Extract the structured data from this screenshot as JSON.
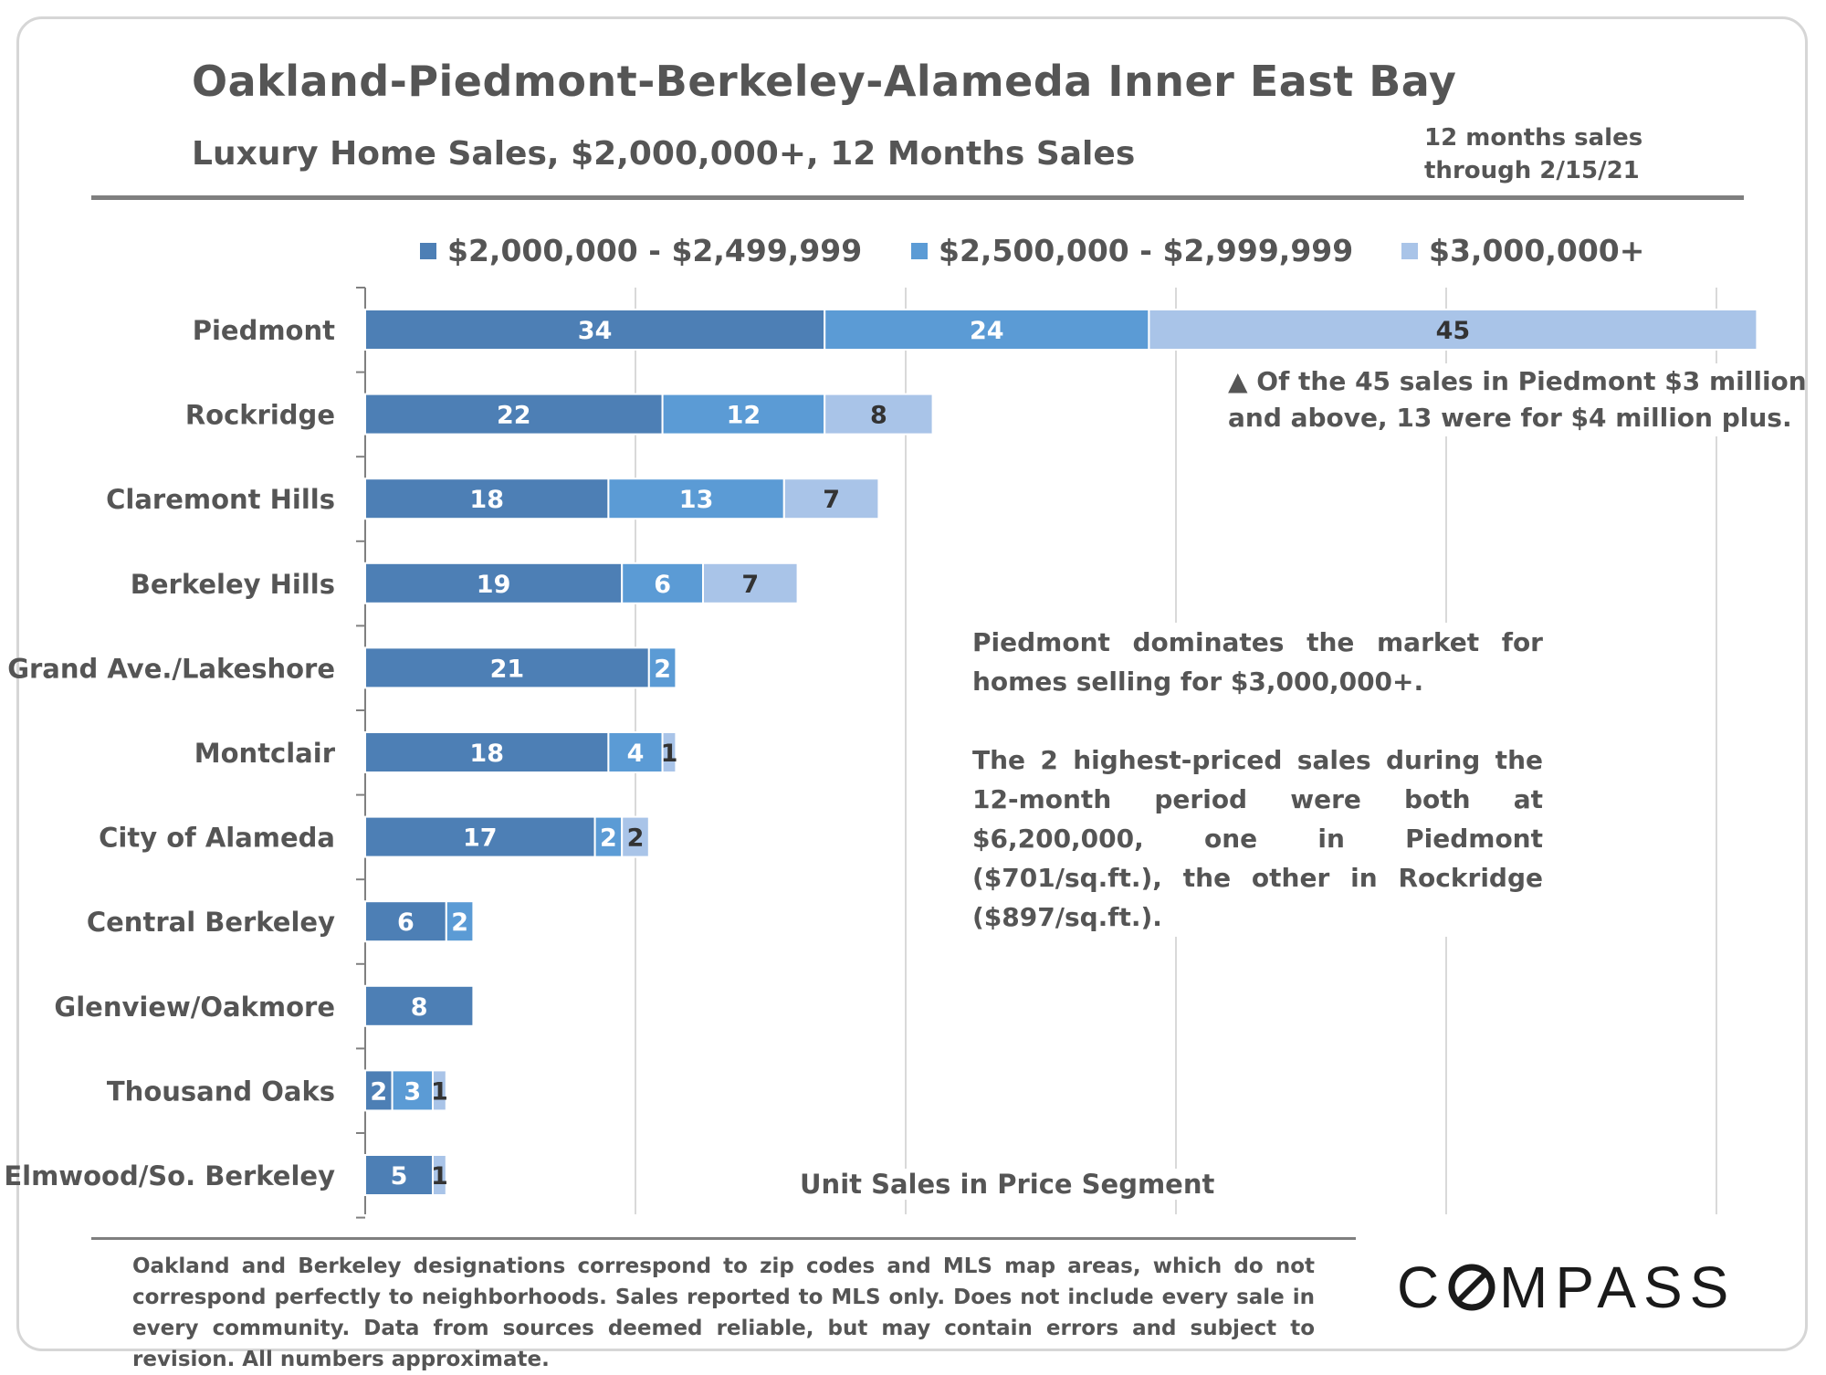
{
  "title": "Oakland-Piedmont-Berkeley-Alameda Inner East Bay",
  "subtitle": "Luxury Home Sales, $2,000,000+, 12 Months Sales",
  "period_note": [
    "12 months sales",
    "through 2/15/21"
  ],
  "colors": {
    "segment_1": "#4d7fb5",
    "segment_2": "#5b9bd5",
    "segment_3": "#a9c4e8",
    "gridline": "#d9d9d9",
    "axis": "#808080"
  },
  "annotation_piedmont": [
    "▲ Of the 45 sales in Piedmont $3 million",
    "and above, 13 were for $4 million plus."
  ],
  "annotation_main": [
    "Piedmont dominates the market for homes selling for $3,000,000+.",
    "The 2 highest-priced sales during the 12-month period were both at $6,200,000, one in Piedmont ($701/sq.ft.), the other in Rockridge ($897/sq.ft.)."
  ],
  "disclaimer": "Oakland and Berkeley designations correspond to zip codes and MLS map areas, which do not correspond perfectly to neighborhoods. Sales reported to MLS only. Does not include every sale in every community. Data from sources deemed reliable, but may contain errors and subject to revision. All numbers approximate.",
  "logo_text": "COMPASS",
  "chart_data": {
    "type": "bar",
    "orientation": "horizontal",
    "stacked": true,
    "title": "Oakland-Piedmont-Berkeley-Alameda Inner East Bay",
    "subtitle": "Luxury Home Sales, $2,000,000+, 12 Months Sales",
    "xlabel": "Unit Sales in Price Segment",
    "ylabel": "",
    "xlim": [
      0,
      103
    ],
    "x_gridlines": [
      0,
      20,
      40,
      60,
      80,
      100
    ],
    "show_x_tick_labels": false,
    "legend_position": "top",
    "categories": [
      "Piedmont",
      "Rockridge",
      "Claremont Hills",
      "Berkeley Hills",
      "Grand Ave./Lakeshore",
      "Montclair",
      "City of Alameda",
      "Central Berkeley",
      "Glenview/Oakmore",
      "Thousand Oaks",
      "Elmwood/So. Berkeley"
    ],
    "series": [
      {
        "name": "$2,000,000 - $2,499,999",
        "color": "#4d7fb5",
        "label_color": "#ffffff",
        "values": [
          34,
          22,
          18,
          19,
          21,
          18,
          17,
          6,
          8,
          2,
          5
        ]
      },
      {
        "name": "$2,500,000 - $2,999,999",
        "color": "#5b9bd5",
        "label_color": "#ffffff",
        "values": [
          24,
          12,
          13,
          6,
          2,
          4,
          2,
          2,
          0,
          3,
          0
        ]
      },
      {
        "name": "$3,000,000+",
        "color": "#a9c4e8",
        "label_color": "#333333",
        "values": [
          45,
          8,
          7,
          7,
          0,
          1,
          2,
          0,
          0,
          1,
          1
        ]
      }
    ]
  }
}
